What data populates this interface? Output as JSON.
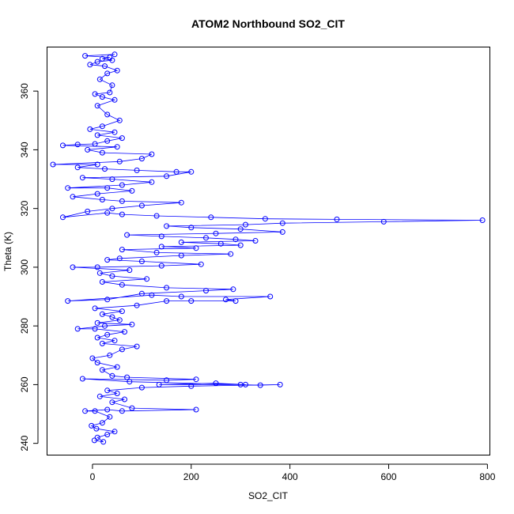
{
  "chart_data": {
    "type": "scatter",
    "title": "ATOM2 Northbound SO2_CIT",
    "xlabel": "SO2_CIT",
    "ylabel": "Theta (K)",
    "xlim": [
      -92,
      805
    ],
    "ylim": [
      236,
      375
    ],
    "xticks": [
      0,
      200,
      400,
      600,
      800
    ],
    "yticks": [
      240,
      260,
      280,
      300,
      320,
      340,
      360
    ],
    "grid": false,
    "legend": "none",
    "color": "#0000ff",
    "marker": "open-circle",
    "connected": true,
    "series": [
      {
        "points": [
          [
            4,
            241
          ],
          [
            22,
            240.5
          ],
          [
            10,
            242
          ],
          [
            30,
            243
          ],
          [
            45,
            244
          ],
          [
            8,
            245
          ],
          [
            -2,
            246
          ],
          [
            20,
            247
          ],
          [
            35,
            249
          ],
          [
            5,
            251
          ],
          [
            -15,
            251
          ],
          [
            30,
            251.5
          ],
          [
            60,
            251
          ],
          [
            210,
            251.5
          ],
          [
            80,
            252
          ],
          [
            40,
            254
          ],
          [
            65,
            255
          ],
          [
            15,
            256
          ],
          [
            50,
            257
          ],
          [
            30,
            258
          ],
          [
            100,
            259
          ],
          [
            200,
            259.5
          ],
          [
            380,
            260
          ],
          [
            340,
            259.8
          ],
          [
            300,
            260
          ],
          [
            135,
            260
          ],
          [
            250,
            260.5
          ],
          [
            310,
            260
          ],
          [
            75,
            261
          ],
          [
            -20,
            262
          ],
          [
            150,
            261.5
          ],
          [
            210,
            261.8
          ],
          [
            70,
            262.5
          ],
          [
            40,
            263
          ],
          [
            20,
            265
          ],
          [
            50,
            266
          ],
          [
            10,
            267.5
          ],
          [
            0,
            269
          ],
          [
            35,
            270
          ],
          [
            60,
            272
          ],
          [
            90,
            273
          ],
          [
            20,
            274
          ],
          [
            45,
            275
          ],
          [
            10,
            276
          ],
          [
            30,
            277
          ],
          [
            65,
            278
          ],
          [
            5,
            279
          ],
          [
            -30,
            279
          ],
          [
            25,
            280
          ],
          [
            80,
            280.5
          ],
          [
            10,
            281
          ],
          [
            55,
            282
          ],
          [
            40,
            283
          ],
          [
            20,
            284
          ],
          [
            60,
            285
          ],
          [
            5,
            286
          ],
          [
            90,
            287
          ],
          [
            150,
            288.5
          ],
          [
            200,
            288.5
          ],
          [
            290,
            288.5
          ],
          [
            270,
            289
          ],
          [
            360,
            290
          ],
          [
            180,
            290
          ],
          [
            120,
            290.5
          ],
          [
            -50,
            288.5
          ],
          [
            30,
            289
          ],
          [
            100,
            291
          ],
          [
            230,
            292
          ],
          [
            285,
            292.5
          ],
          [
            150,
            293
          ],
          [
            60,
            294
          ],
          [
            20,
            295
          ],
          [
            110,
            296
          ],
          [
            40,
            297
          ],
          [
            15,
            298
          ],
          [
            75,
            299
          ],
          [
            -40,
            300
          ],
          [
            10,
            300
          ],
          [
            140,
            300.5
          ],
          [
            220,
            301
          ],
          [
            100,
            302
          ],
          [
            30,
            302.5
          ],
          [
            55,
            303
          ],
          [
            180,
            304
          ],
          [
            280,
            304.5
          ],
          [
            130,
            305
          ],
          [
            60,
            306
          ],
          [
            210,
            306.5
          ],
          [
            140,
            307
          ],
          [
            300,
            307.5
          ],
          [
            260,
            308
          ],
          [
            180,
            308.5
          ],
          [
            330,
            309
          ],
          [
            290,
            309.5
          ],
          [
            230,
            310
          ],
          [
            140,
            310.5
          ],
          [
            70,
            311
          ],
          [
            250,
            311.5
          ],
          [
            385,
            312
          ],
          [
            300,
            313
          ],
          [
            200,
            313.5
          ],
          [
            150,
            314
          ],
          [
            310,
            314.5
          ],
          [
            385,
            315
          ],
          [
            590,
            315.5
          ],
          [
            790,
            316
          ],
          [
            495,
            316.3
          ],
          [
            350,
            316.5
          ],
          [
            240,
            317
          ],
          [
            130,
            317.5
          ],
          [
            60,
            318
          ],
          [
            30,
            318.5
          ],
          [
            -60,
            317
          ],
          [
            -10,
            319
          ],
          [
            40,
            320
          ],
          [
            100,
            321
          ],
          [
            180,
            322
          ],
          [
            60,
            322.5
          ],
          [
            20,
            323
          ],
          [
            -40,
            324
          ],
          [
            10,
            325
          ],
          [
            80,
            326
          ],
          [
            30,
            327
          ],
          [
            -50,
            327
          ],
          [
            60,
            328
          ],
          [
            120,
            329
          ],
          [
            40,
            330
          ],
          [
            -20,
            330.5
          ],
          [
            150,
            331
          ],
          [
            200,
            332.5
          ],
          [
            170,
            332.5
          ],
          [
            90,
            333
          ],
          [
            25,
            333.5
          ],
          [
            -30,
            334
          ],
          [
            10,
            335
          ],
          [
            -80,
            335
          ],
          [
            55,
            336
          ],
          [
            100,
            337
          ],
          [
            120,
            338.5
          ],
          [
            20,
            339
          ],
          [
            -10,
            340
          ],
          [
            50,
            341
          ],
          [
            -60,
            341.5
          ],
          [
            -30,
            341.8
          ],
          [
            5,
            342
          ],
          [
            30,
            343
          ],
          [
            60,
            344
          ],
          [
            10,
            345
          ],
          [
            45,
            346
          ],
          [
            -5,
            347
          ],
          [
            20,
            348
          ],
          [
            55,
            350
          ],
          [
            30,
            352
          ],
          [
            10,
            355
          ],
          [
            45,
            357
          ],
          [
            20,
            358
          ],
          [
            5,
            359
          ],
          [
            35,
            359.5
          ],
          [
            40,
            362
          ],
          [
            15,
            364
          ],
          [
            30,
            366
          ],
          [
            50,
            367
          ],
          [
            25,
            368.5
          ],
          [
            -5,
            369
          ],
          [
            10,
            370
          ],
          [
            40,
            370.5
          ],
          [
            20,
            371
          ],
          [
            35,
            371.5
          ],
          [
            -15,
            372
          ],
          [
            45,
            372.5
          ]
        ]
      }
    ]
  }
}
